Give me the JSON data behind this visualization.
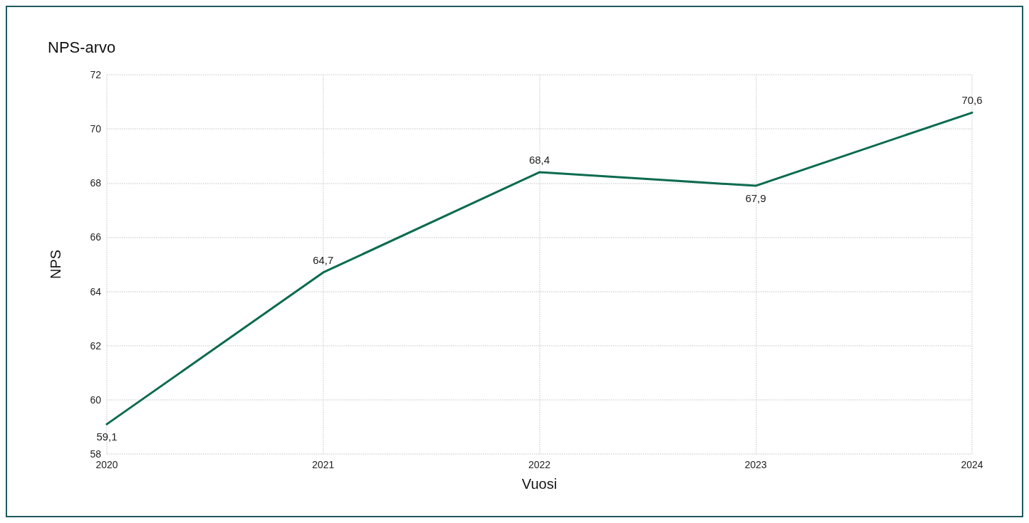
{
  "chart_data": {
    "type": "line",
    "title": "NPS-arvo",
    "xlabel": "Vuosi",
    "ylabel": "NPS",
    "categories": [
      "2020",
      "2021",
      "2022",
      "2023",
      "2024"
    ],
    "series": [
      {
        "color": "#0b6b4f",
        "values": [
          59.1,
          64.7,
          68.4,
          67.9,
          70.6
        ],
        "value_labels": [
          "59,1",
          "64,7",
          "68,4",
          "67,9",
          "70,6"
        ]
      }
    ],
    "ylim": [
      58,
      72
    ],
    "yticks": [
      58,
      60,
      62,
      64,
      66,
      68,
      70,
      72
    ],
    "grid": true,
    "marker": "none",
    "line_style": "solid"
  }
}
